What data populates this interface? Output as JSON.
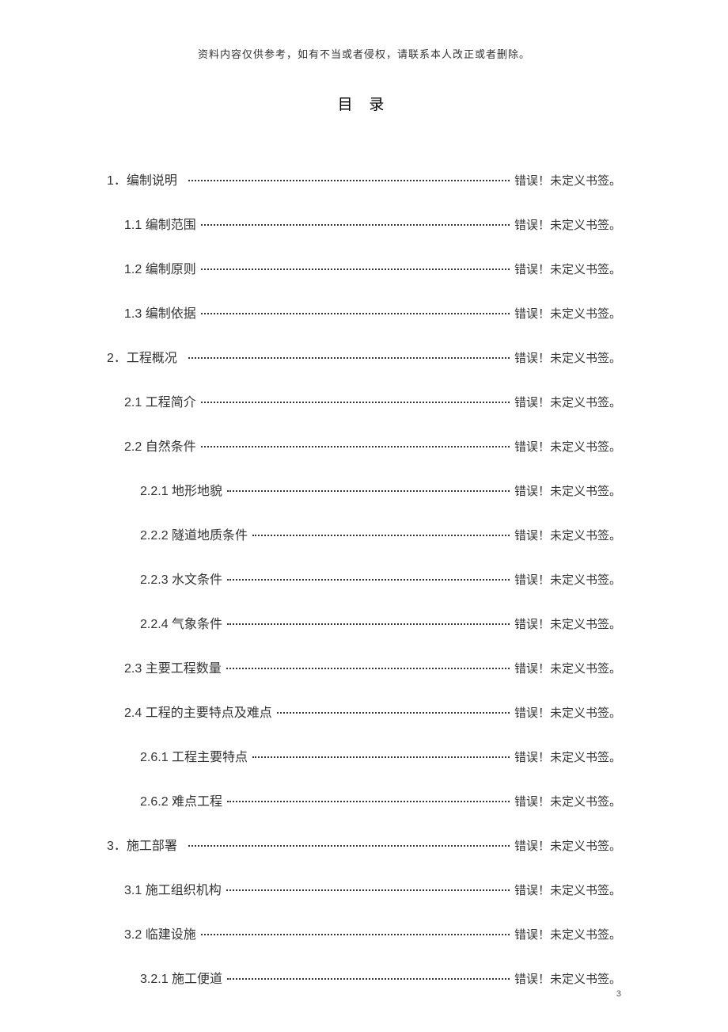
{
  "header_note": "资料内容仅供参考，如有不当或者侵权，请联系本人改正或者删除。",
  "title": "目 录",
  "error_text": "错误！未定义书签。",
  "page_number": "3",
  "toc": [
    {
      "num": "1．",
      "label": "编制说明",
      "indent": 0,
      "gap": true
    },
    {
      "num": "1.1 ",
      "label": "编制范围",
      "indent": 1,
      "gap": false
    },
    {
      "num": "1.2 ",
      "label": "编制原则",
      "indent": 1,
      "gap": false
    },
    {
      "num": "1.3 ",
      "label": "编制依据",
      "indent": 1,
      "gap": false
    },
    {
      "num": "2．",
      "label": "工程概况",
      "indent": 0,
      "gap": true
    },
    {
      "num": "2.1 ",
      "label": " 工程简介",
      "indent": 1,
      "gap": false
    },
    {
      "num": "2.2 ",
      "label": " 自然条件",
      "indent": 1,
      "gap": false
    },
    {
      "num": "2.2.1 ",
      "label": " 地形地貌",
      "indent": 2,
      "gap": false
    },
    {
      "num": "2.2.2 ",
      "label": " 隧道地质条件",
      "indent": 2,
      "gap": false
    },
    {
      "num": "2.2.3 ",
      "label": " 水文条件",
      "indent": 2,
      "gap": false
    },
    {
      "num": "2.2.4 ",
      "label": " 气象条件",
      "indent": 2,
      "gap": false
    },
    {
      "num": "2.3 ",
      "label": "主要工程数量",
      "indent": 1,
      "gap": false
    },
    {
      "num": "2.4 ",
      "label": "  工程的主要特点及难点",
      "indent": 1,
      "gap": false
    },
    {
      "num": "2.6.1 ",
      "label": " 工程主要特点",
      "indent": 2,
      "gap": false
    },
    {
      "num": "2.6.2 ",
      "label": "难点工程",
      "indent": 2,
      "gap": false
    },
    {
      "num": "3．",
      "label": "施工部署",
      "indent": 0,
      "gap": true
    },
    {
      "num": "3.1 ",
      "label": "施工组织机构",
      "indent": 1,
      "gap": false
    },
    {
      "num": "3.2 ",
      "label": "临建设施",
      "indent": 1,
      "gap": false
    },
    {
      "num": "3.2.1 ",
      "label": "施工便道",
      "indent": 2,
      "gap": false
    }
  ]
}
